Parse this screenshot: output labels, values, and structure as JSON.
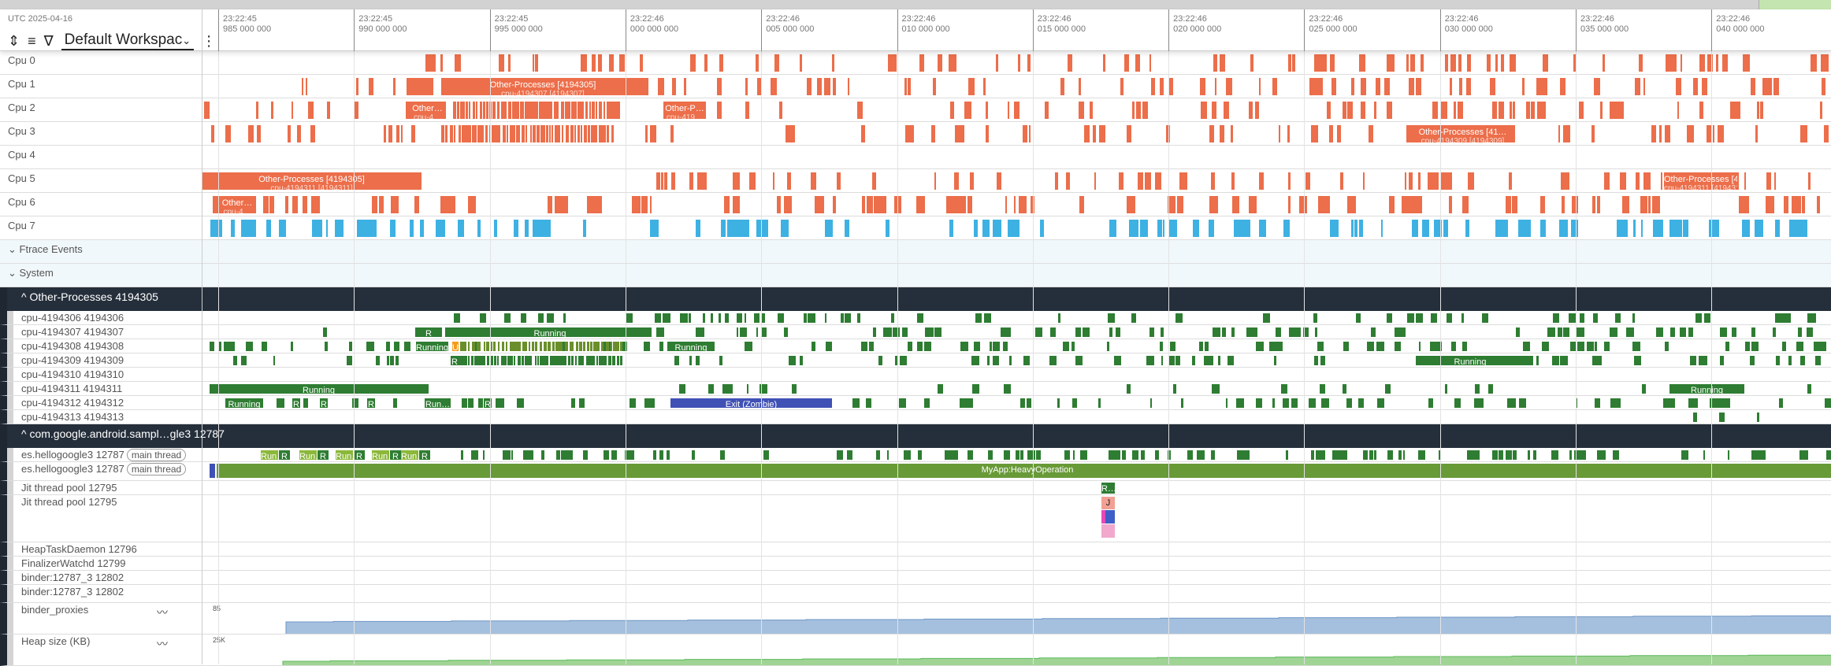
{
  "header": {
    "date": "UTC 2025-04-16",
    "workspace": "Default Workspac",
    "workspace_chevron": "⌄",
    "more": "⋮",
    "ticks": [
      {
        "t": "23:22:45",
        "ns": "985 000 000"
      },
      {
        "t": "23:22:45",
        "ns": "990 000 000"
      },
      {
        "t": "23:22:45",
        "ns": "995 000 000"
      },
      {
        "t": "23:22:46",
        "ns": "000 000 000"
      },
      {
        "t": "23:22:46",
        "ns": "005 000 000"
      },
      {
        "t": "23:22:46",
        "ns": "010 000 000"
      },
      {
        "t": "23:22:46",
        "ns": "015 000 000"
      },
      {
        "t": "23:22:46",
        "ns": "020 000 000"
      },
      {
        "t": "23:22:46",
        "ns": "025 000 000"
      },
      {
        "t": "23:22:46",
        "ns": "030 000 000"
      },
      {
        "t": "23:22:46",
        "ns": "035 000 000"
      },
      {
        "t": "23:22:46",
        "ns": "040 000 000"
      }
    ]
  },
  "cpus": [
    "Cpu 0",
    "Cpu 1",
    "Cpu 2",
    "Cpu 3",
    "Cpu 4",
    "Cpu 5",
    "Cpu 6",
    "Cpu 7"
  ],
  "ftrace": "Ftrace Events",
  "system": "System",
  "group1": {
    "title": "Other-Processes 4194305",
    "threads": [
      "cpu-4194306 4194306",
      "cpu-4194307 4194307",
      "cpu-4194308 4194308",
      "cpu-4194309 4194309",
      "cpu-4194310 4194310",
      "cpu-4194311 4194311",
      "cpu-4194312 4194312",
      "cpu-4194313 4194313"
    ]
  },
  "group2": {
    "title": "com.google.android.sampl…gle3 12787",
    "main_tag": "main thread",
    "threads": [
      "es.hellogoogle3 12787",
      "es.hellogoogle3 12787",
      "Jit thread pool 12795",
      "Jit thread pool 12795",
      "HeapTaskDaemon 12796",
      "FinalizerWatchd 12799",
      "binder:12787_3 12802",
      "binder:12787_3 12802"
    ],
    "counters": [
      {
        "name": "binder_proxies",
        "max": "85"
      },
      {
        "name": "Heap size (KB)",
        "max": "25K"
      }
    ]
  },
  "slices": {
    "op_big": "Other-Processes [4194305]",
    "op_big2": "Other-Processes [41…",
    "sub307": "cpu-4194307 [4194307]",
    "sub311": "cpu-4194311 [4194311]",
    "sub309": "cpu-4194309 [4194309]",
    "other": "Other…",
    "otherp": "Other-P…",
    "sub4": "cpu-4…",
    "sub419": "cpu-419…",
    "running": "Running",
    "r": "R",
    "u": "U",
    "run_short": "Run…",
    "zombie": "Exit (Zombie)",
    "heavy": "MyApp:HeavyOperation",
    "jit_r": "R…",
    "jit_j": "J"
  },
  "colors": {
    "cpu": "#ec6e4a",
    "cpu7": "#3eb1e3",
    "running": "#2e7d32",
    "runnable_light": "#8bb83a",
    "uninterruptible": "#f59c1a",
    "zombie": "#3f51b5",
    "heavy": "#689a37",
    "binder": "#a5c0de",
    "heap": "#9fd494"
  }
}
